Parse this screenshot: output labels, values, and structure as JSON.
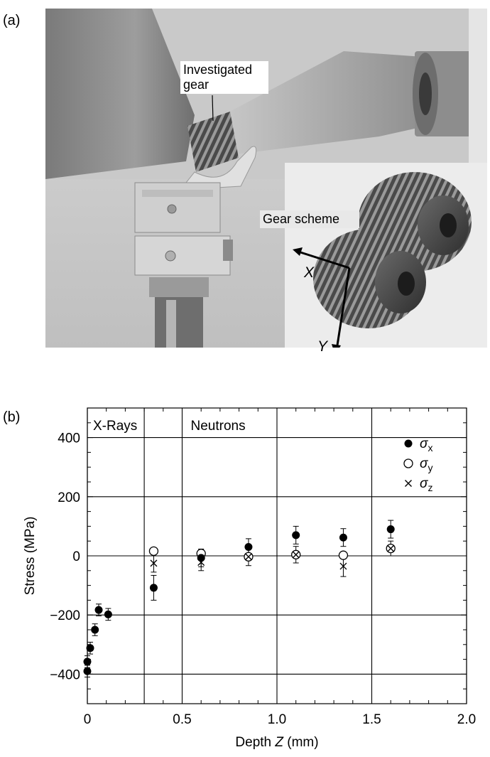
{
  "panel_a": {
    "label": "(a)",
    "callout_gear": "Investigated gear",
    "callout_scheme": "Gear scheme",
    "axis_x": "X",
    "axis_y": "Y"
  },
  "panel_b": {
    "label": "(b)"
  },
  "chart_data": {
    "type": "scatter",
    "xlabel_prefix": "Depth ",
    "xlabel_var": "Z",
    "xlabel_suffix": " (mm)",
    "ylabel": "Stress (MPa)",
    "xlim": [
      0,
      2.0
    ],
    "ylim": [
      -500,
      500
    ],
    "x_ticks": [
      "0",
      "0.5",
      "1.0",
      "1.5",
      "2.0"
    ],
    "x_tick_values": [
      0,
      0.5,
      1.0,
      1.5,
      2.0
    ],
    "y_ticks": [
      "400",
      "200",
      "0",
      "−200",
      "−400"
    ],
    "y_tick_values": [
      400,
      200,
      0,
      -200,
      -400
    ],
    "grid": true,
    "region_divider": 0.3,
    "region_labels": [
      "X-Rays",
      "Neutrons"
    ],
    "legend_position": "top-right",
    "series": [
      {
        "name": "σx",
        "symbol": "σ",
        "subscript": "x",
        "marker": "filled-circle",
        "points": [
          {
            "x": 0.0,
            "y": -390,
            "err": 20
          },
          {
            "x": 0.0,
            "y": -358,
            "err": 20
          },
          {
            "x": 0.015,
            "y": -312,
            "err": 20
          },
          {
            "x": 0.04,
            "y": -250,
            "err": 20
          },
          {
            "x": 0.06,
            "y": -183,
            "err": 20
          },
          {
            "x": 0.11,
            "y": -198,
            "err": 20
          },
          {
            "x": 0.35,
            "y": -108,
            "err": 42
          },
          {
            "x": 0.6,
            "y": -7,
            "err": 30
          },
          {
            "x": 0.85,
            "y": 30,
            "err": 28
          },
          {
            "x": 1.1,
            "y": 70,
            "err": 30
          },
          {
            "x": 1.35,
            "y": 62,
            "err": 30
          },
          {
            "x": 1.6,
            "y": 90,
            "err": 30
          }
        ]
      },
      {
        "name": "σy",
        "symbol": "σ",
        "subscript": "y",
        "marker": "open-circle",
        "points": [
          {
            "x": 0.35,
            "y": 16
          },
          {
            "x": 0.6,
            "y": 8
          },
          {
            "x": 0.85,
            "y": -3
          },
          {
            "x": 1.1,
            "y": 4
          },
          {
            "x": 1.35,
            "y": 2
          },
          {
            "x": 1.6,
            "y": 25
          }
        ]
      },
      {
        "name": "σz",
        "symbol": "σ",
        "subscript": "z",
        "marker": "cross",
        "points": [
          {
            "x": 0.35,
            "y": -25,
            "err": 30
          },
          {
            "x": 0.6,
            "y": -22,
            "err": 28
          },
          {
            "x": 0.85,
            "y": -3,
            "err": 30
          },
          {
            "x": 1.1,
            "y": 4,
            "err": 28
          },
          {
            "x": 1.35,
            "y": -35,
            "err": 35
          },
          {
            "x": 1.6,
            "y": 25,
            "err": 25
          }
        ]
      }
    ]
  }
}
